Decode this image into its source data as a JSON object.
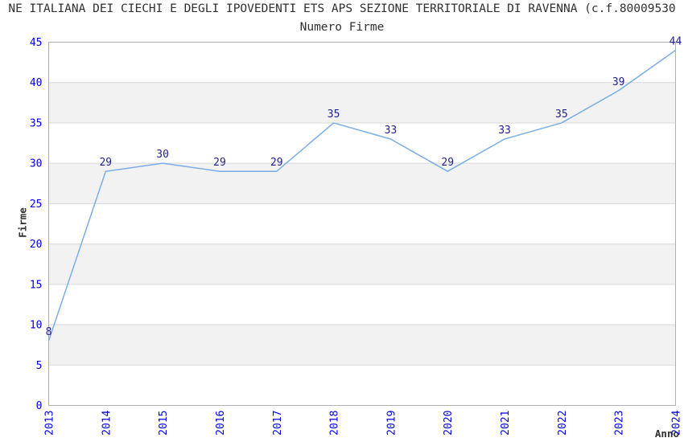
{
  "page": {
    "title": "NE ITALIANA DEI CIECHI E DEGLI IPOVEDENTI ETS APS SEZIONE TERRITORIALE DI RAVENNA (c.f.80009530",
    "subtitle": "Numero Firme"
  },
  "chart_data": {
    "type": "line",
    "title": "Numero Firme",
    "x": [
      2013,
      2014,
      2015,
      2016,
      2017,
      2018,
      2019,
      2020,
      2021,
      2022,
      2023,
      2024
    ],
    "values": [
      8,
      29,
      30,
      29,
      29,
      35,
      33,
      29,
      33,
      35,
      39,
      44
    ],
    "xlabel": "Anno",
    "ylabel": "Firme",
    "ylim": [
      0,
      45
    ],
    "ytick_step": 5,
    "grid": "horizontal-bands",
    "legend": "none",
    "colors": {
      "line": "#7aade6",
      "tick_label": "#0000dd",
      "data_label": "#1f1f8c",
      "band": "#f2f2f2",
      "gridline": "#d9d9d9",
      "border": "#b0b0b0",
      "text": "#303030"
    }
  }
}
